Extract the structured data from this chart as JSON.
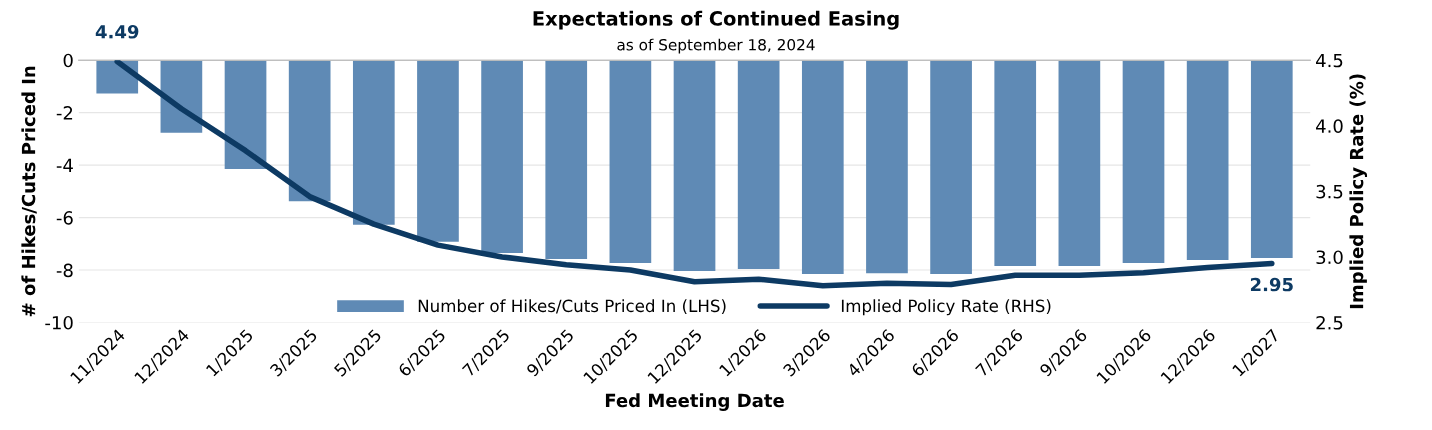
{
  "chart_data": {
    "type": "bar",
    "title": "Expectations of Continued Easing",
    "subtitle": "as of September 18, 2024",
    "xlabel": "Fed Meeting Date",
    "ylabel": "# of Hikes/Cuts Priced In",
    "y2label": "Implied Policy Rate (%)",
    "categories": [
      "11/2024",
      "12/2024",
      "1/2025",
      "3/2025",
      "5/2025",
      "6/2025",
      "7/2025",
      "9/2025",
      "10/2025",
      "12/2025",
      "1/2026",
      "3/2026",
      "4/2026",
      "6/2026",
      "7/2026",
      "9/2026",
      "10/2026",
      "12/2026",
      "1/2027"
    ],
    "series": [
      {
        "name": "Number of Hikes/Cuts Priced In (LHS)",
        "color": "#5f8ab5",
        "values": [
          -1.27,
          -2.77,
          -4.15,
          -5.38,
          -6.27,
          -6.92,
          -7.35,
          -7.58,
          -7.73,
          -8.04,
          -7.96,
          -8.15,
          -8.12,
          -8.15,
          -7.85,
          -7.85,
          -7.73,
          -7.62,
          -7.54
        ]
      },
      {
        "name": "Implied Policy Rate (RHS)",
        "type": "line",
        "axis": "y2",
        "color": "#0d3a63",
        "values": [
          4.49,
          4.13,
          3.81,
          3.46,
          3.25,
          3.09,
          3.0,
          2.94,
          2.9,
          2.81,
          2.83,
          2.78,
          2.8,
          2.79,
          2.86,
          2.86,
          2.88,
          2.92,
          2.95
        ],
        "value_labels": [
          "4.49",
          null,
          null,
          null,
          null,
          null,
          null,
          null,
          null,
          null,
          null,
          null,
          null,
          null,
          null,
          null,
          null,
          null,
          "2.95"
        ]
      }
    ],
    "ylim": [
      -10,
      0
    ],
    "yticks": [
      -10,
      -8,
      -6,
      -4,
      -2,
      0
    ],
    "y2lim": [
      2.5,
      4.5
    ],
    "y2ticks": [
      {
        "value": 2.5,
        "label": "2.5"
      },
      {
        "value": 3.0,
        "label": "3.0"
      },
      {
        "value": 3.5,
        "label": "3.5"
      },
      {
        "value": 4.0,
        "label": "4.0"
      },
      {
        "value": 4.5,
        "label": "4.5"
      }
    ],
    "grid": "y",
    "legend": "bottom"
  }
}
